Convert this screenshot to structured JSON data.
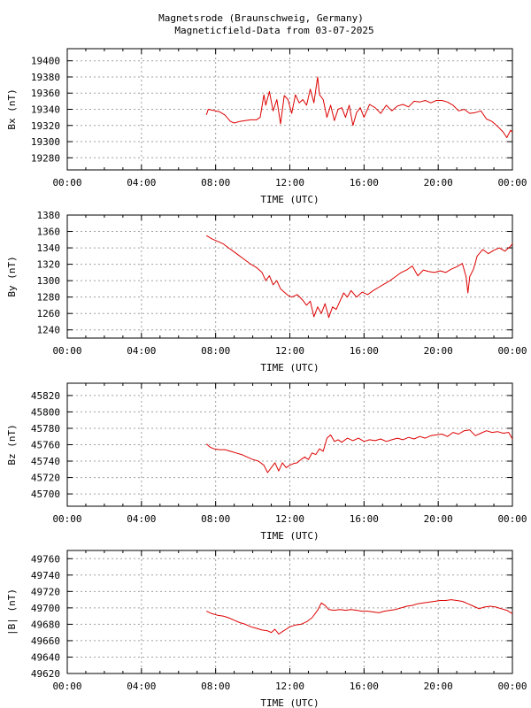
{
  "title": "Magnetsrode (Braunschweig, Germany)",
  "subtitle": "Magneticfield-Data from 03-07-2025",
  "line_color": "#dd0000",
  "grid": true,
  "chart_data": [
    {
      "type": "line",
      "ylabel": "Bx (nT)",
      "xlabel": "TIME (UTC)",
      "xticks": [
        "00:00",
        "04:00",
        "08:00",
        "12:00",
        "16:00",
        "20:00",
        "00:00"
      ],
      "xlim": [
        0,
        24
      ],
      "ylim": [
        19265,
        19415
      ],
      "yticks": [
        19280,
        19300,
        19320,
        19340,
        19360,
        19380,
        19400
      ],
      "x": [
        7.5,
        7.6,
        7.8,
        8.0,
        8.2,
        8.5,
        8.8,
        9.0,
        9.3,
        9.6,
        9.9,
        10.2,
        10.4,
        10.6,
        10.7,
        10.9,
        11.1,
        11.3,
        11.5,
        11.7,
        11.9,
        12.1,
        12.3,
        12.5,
        12.7,
        12.9,
        13.1,
        13.3,
        13.5,
        13.6,
        13.8,
        14.0,
        14.2,
        14.4,
        14.6,
        14.8,
        15.0,
        15.2,
        15.4,
        15.6,
        15.8,
        16.0,
        16.3,
        16.6,
        16.9,
        17.2,
        17.5,
        17.8,
        18.1,
        18.4,
        18.7,
        19.0,
        19.3,
        19.6,
        19.9,
        20.2,
        20.5,
        20.8,
        21.1,
        21.4,
        21.7,
        22.0,
        22.3,
        22.6,
        22.9,
        23.2,
        23.5,
        23.7,
        23.9,
        24.0
      ],
      "values": [
        19333,
        19340,
        19339,
        19338,
        19337,
        19333,
        19325,
        19323,
        19325,
        19326,
        19327,
        19327,
        19330,
        19358,
        19345,
        19362,
        19338,
        19352,
        19322,
        19357,
        19352,
        19335,
        19358,
        19348,
        19352,
        19345,
        19365,
        19348,
        19380,
        19358,
        19352,
        19330,
        19345,
        19326,
        19340,
        19342,
        19330,
        19345,
        19320,
        19336,
        19342,
        19330,
        19346,
        19342,
        19335,
        19345,
        19338,
        19344,
        19346,
        19343,
        19350,
        19349,
        19351,
        19348,
        19351,
        19351,
        19349,
        19345,
        19338,
        19340,
        19335,
        19336,
        19338,
        19328,
        19325,
        19319,
        19312,
        19305,
        19314,
        19312
      ]
    },
    {
      "type": "line",
      "ylabel": "By (nT)",
      "xlabel": "TIME (UTC)",
      "xticks": [
        "00:00",
        "04:00",
        "08:00",
        "12:00",
        "16:00",
        "20:00",
        "00:00"
      ],
      "xlim": [
        0,
        24
      ],
      "ylim": [
        1230,
        1380
      ],
      "yticks": [
        1240,
        1260,
        1280,
        1300,
        1320,
        1340,
        1360,
        1380
      ],
      "x": [
        7.5,
        7.8,
        8.1,
        8.4,
        8.7,
        9.0,
        9.3,
        9.6,
        9.9,
        10.2,
        10.5,
        10.7,
        10.9,
        11.1,
        11.3,
        11.5,
        11.7,
        11.9,
        12.1,
        12.4,
        12.7,
        12.9,
        13.1,
        13.3,
        13.5,
        13.7,
        13.9,
        14.1,
        14.3,
        14.5,
        14.7,
        14.9,
        15.1,
        15.3,
        15.6,
        15.9,
        16.2,
        16.5,
        16.8,
        17.1,
        17.4,
        17.7,
        18.0,
        18.3,
        18.6,
        18.9,
        19.2,
        19.5,
        19.8,
        20.1,
        20.4,
        20.7,
        21.0,
        21.3,
        21.5,
        21.6,
        21.7,
        21.9,
        22.1,
        22.4,
        22.7,
        23.0,
        23.3,
        23.6,
        23.9,
        24.0
      ],
      "values": [
        1355,
        1351,
        1348,
        1345,
        1340,
        1335,
        1330,
        1325,
        1320,
        1316,
        1310,
        1300,
        1306,
        1295,
        1300,
        1290,
        1286,
        1282,
        1280,
        1283,
        1276,
        1270,
        1275,
        1256,
        1268,
        1260,
        1272,
        1255,
        1268,
        1265,
        1275,
        1285,
        1280,
        1288,
        1280,
        1286,
        1283,
        1288,
        1292,
        1296,
        1300,
        1305,
        1310,
        1313,
        1318,
        1306,
        1313,
        1311,
        1310,
        1312,
        1310,
        1314,
        1317,
        1321,
        1305,
        1285,
        1305,
        1314,
        1330,
        1338,
        1333,
        1337,
        1340,
        1336,
        1342,
        1345
      ]
    },
    {
      "type": "line",
      "ylabel": "Bz (nT)",
      "xlabel": "TIME (UTC)",
      "xticks": [
        "00:00",
        "04:00",
        "08:00",
        "12:00",
        "16:00",
        "20:00",
        "00:00"
      ],
      "xlim": [
        0,
        24
      ],
      "ylim": [
        45685,
        45835
      ],
      "yticks": [
        45700,
        45720,
        45740,
        45760,
        45780,
        45800,
        45820
      ],
      "x": [
        7.5,
        7.7,
        7.9,
        8.2,
        8.5,
        8.8,
        9.1,
        9.4,
        9.7,
        10.0,
        10.3,
        10.6,
        10.8,
        11.0,
        11.2,
        11.4,
        11.6,
        11.8,
        12.0,
        12.2,
        12.4,
        12.6,
        12.8,
        13.0,
        13.2,
        13.4,
        13.6,
        13.8,
        14.0,
        14.2,
        14.4,
        14.6,
        14.8,
        15.1,
        15.4,
        15.7,
        16.0,
        16.3,
        16.6,
        16.9,
        17.2,
        17.5,
        17.8,
        18.1,
        18.4,
        18.7,
        19.0,
        19.3,
        19.6,
        19.9,
        20.2,
        20.5,
        20.8,
        21.1,
        21.4,
        21.7,
        22.0,
        22.3,
        22.6,
        22.9,
        23.2,
        23.5,
        23.8,
        24.0
      ],
      "values": [
        45761,
        45757,
        45755,
        45754,
        45754,
        45752,
        45750,
        45748,
        45745,
        45742,
        45740,
        45735,
        45726,
        45732,
        45738,
        45728,
        45738,
        45732,
        45735,
        45737,
        45738,
        45742,
        45745,
        45742,
        45750,
        45748,
        45755,
        45752,
        45768,
        45772,
        45764,
        45766,
        45763,
        45768,
        45765,
        45768,
        45764,
        45766,
        45765,
        45767,
        45764,
        45766,
        45768,
        45766,
        45769,
        45767,
        45770,
        45768,
        45771,
        45772,
        45773,
        45770,
        45775,
        45773,
        45777,
        45778,
        45771,
        45774,
        45777,
        45775,
        45776,
        45774,
        45775,
        45767
      ]
    },
    {
      "type": "line",
      "ylabel": "|B| (nT)",
      "xlabel": "TIME (UTC)",
      "xticks": [
        "00:00",
        "04:00",
        "08:00",
        "12:00",
        "16:00",
        "20:00",
        "00:00"
      ],
      "xlim": [
        0,
        24
      ],
      "ylim": [
        49620,
        49770
      ],
      "yticks": [
        49620,
        49640,
        49660,
        49680,
        49700,
        49720,
        49740,
        49760
      ],
      "x": [
        7.5,
        7.8,
        8.1,
        8.4,
        8.7,
        9.0,
        9.3,
        9.6,
        9.9,
        10.2,
        10.5,
        10.8,
        11.0,
        11.2,
        11.4,
        11.6,
        11.8,
        12.0,
        12.3,
        12.6,
        12.9,
        13.2,
        13.5,
        13.7,
        13.9,
        14.1,
        14.4,
        14.7,
        15.0,
        15.3,
        15.6,
        15.9,
        16.2,
        16.5,
        16.8,
        17.1,
        17.4,
        17.7,
        18.0,
        18.3,
        18.6,
        18.9,
        19.2,
        19.5,
        19.8,
        20.1,
        20.4,
        20.7,
        21.0,
        21.3,
        21.6,
        21.9,
        22.2,
        22.5,
        22.8,
        23.1,
        23.4,
        23.7,
        24.0
      ],
      "values": [
        49696,
        49693,
        49691,
        49690,
        49688,
        49685,
        49682,
        49680,
        49677,
        49675,
        49673,
        49672,
        49670,
        49674,
        49668,
        49671,
        49674,
        49677,
        49679,
        49680,
        49683,
        49688,
        49697,
        49706,
        49703,
        49698,
        49697,
        49698,
        49697,
        49698,
        49697,
        49696,
        49696,
        49695,
        49694,
        49696,
        49697,
        49698,
        49700,
        49702,
        49703,
        49705,
        49706,
        49707,
        49708,
        49709,
        49709,
        49710,
        49709,
        49708,
        49705,
        49702,
        49699,
        49701,
        49702,
        49701,
        49699,
        49697,
        49693
      ]
    }
  ]
}
